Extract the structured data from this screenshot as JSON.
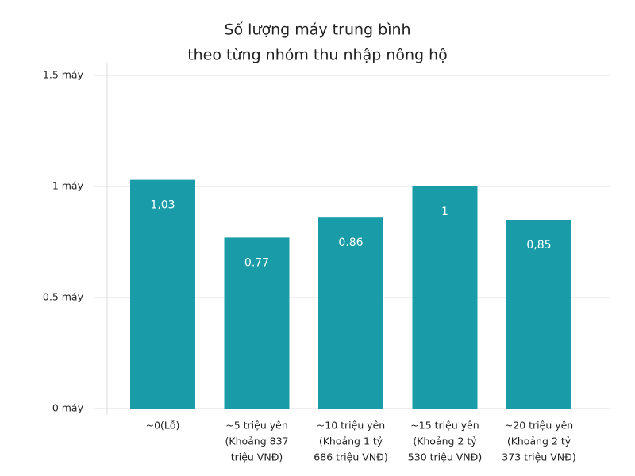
{
  "chart_data": {
    "type": "bar",
    "title": [
      "Số lượng máy trung bình",
      "theo từng nhóm thu nhập nông hộ"
    ],
    "categories": [
      [
        "~0(Lỗ)"
      ],
      [
        "~5 triệu yên",
        "(Khoảng 837",
        "triệu VNĐ)"
      ],
      [
        "~10 triệu yên",
        "(Khoảng 1 tỷ",
        "686 triệu VNĐ)"
      ],
      [
        "~15 triệu yên",
        "(Khoảng 2 tỷ",
        "530 triệu VNĐ)"
      ],
      [
        "~20 triệu yên",
        "(Khoảng 2 tỷ",
        "373 triệu VNĐ)"
      ]
    ],
    "values": [
      1.03,
      0.77,
      0.86,
      1,
      0.85
    ],
    "value_labels": [
      "1,03",
      "0.77",
      "0.86",
      "1",
      "0,85"
    ],
    "color": "#1a9ca8",
    "ylim": [
      0,
      1.5
    ],
    "yticks": [
      {
        "value": 0,
        "label": "0 máy"
      },
      {
        "value": 0.5,
        "label": "0.5 máy"
      },
      {
        "value": 1,
        "label": "1 máy"
      },
      {
        "value": 1.5,
        "label": "1.5 máy"
      }
    ],
    "grid": true
  }
}
